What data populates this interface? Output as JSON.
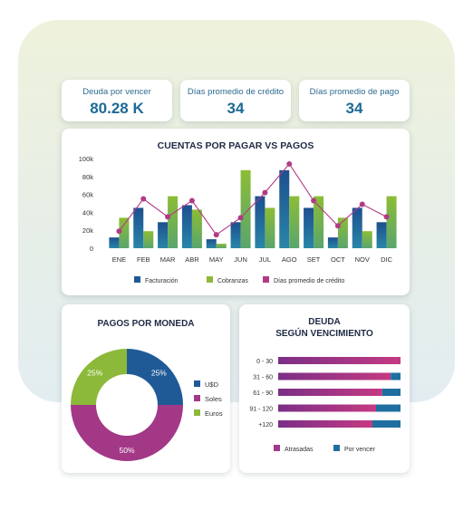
{
  "kpis": [
    {
      "label": "Deuda por vencer",
      "value": "80.28 K"
    },
    {
      "label": "Días promedio de crédito",
      "value": "34"
    },
    {
      "label": "Días promedio de pago",
      "value": "34"
    }
  ],
  "colors": {
    "blue": "#1f6ea0",
    "green": "#8cb93a",
    "purple": "#b23a86",
    "line": "#b23a86"
  },
  "chart_data": [
    {
      "type": "bar",
      "title": "CUENTAS POR PAGAR VS PAGOS",
      "categories": [
        "ENE",
        "FEB",
        "MAR",
        "ABR",
        "MAY",
        "JUN",
        "JUL",
        "AGO",
        "SET",
        "OCT",
        "NOV",
        "DIC"
      ],
      "y_ticks": [
        "100k",
        "80k",
        "60k",
        "40k",
        "20k",
        "0"
      ],
      "ylim": [
        0,
        100000
      ],
      "grid": false,
      "legend_position": "bottom",
      "series": [
        {
          "name": "Facturación",
          "type": "bar",
          "values": [
            12000,
            45000,
            29000,
            48000,
            10000,
            29000,
            58000,
            87000,
            45000,
            12000,
            45000,
            29000
          ]
        },
        {
          "name": "Cobranzas",
          "type": "bar",
          "values": [
            34000,
            19000,
            58000,
            43000,
            5000,
            87000,
            45000,
            58000,
            58000,
            34000,
            19000,
            58000
          ]
        },
        {
          "name": "Días promedio de crédito",
          "type": "line",
          "values": [
            19000,
            55000,
            35000,
            53000,
            15000,
            34000,
            62000,
            94000,
            53000,
            25000,
            49000,
            35000
          ]
        }
      ]
    },
    {
      "type": "pie",
      "title": "PAGOS POR MONEDA",
      "legend_position": "right",
      "labels": [
        "U$D",
        "Soles",
        "Euros"
      ],
      "values": [
        25,
        50,
        25
      ],
      "value_labels": [
        "25%",
        "50%",
        "25%"
      ]
    },
    {
      "type": "bar",
      "orientation": "horizontal",
      "stacked": true,
      "title_lines": [
        "DEUDA",
        "SEGÚN VENCIMIENTO"
      ],
      "categories": [
        "0 - 30",
        "31 - 60",
        "61 - 90",
        "91 - 120",
        "+120"
      ],
      "legend_position": "bottom",
      "series": [
        {
          "name": "Atrasadas",
          "values": [
            100,
            92,
            85,
            80,
            77
          ]
        },
        {
          "name": "Por vencer",
          "values": [
            0,
            8,
            15,
            20,
            23
          ]
        }
      ]
    }
  ]
}
